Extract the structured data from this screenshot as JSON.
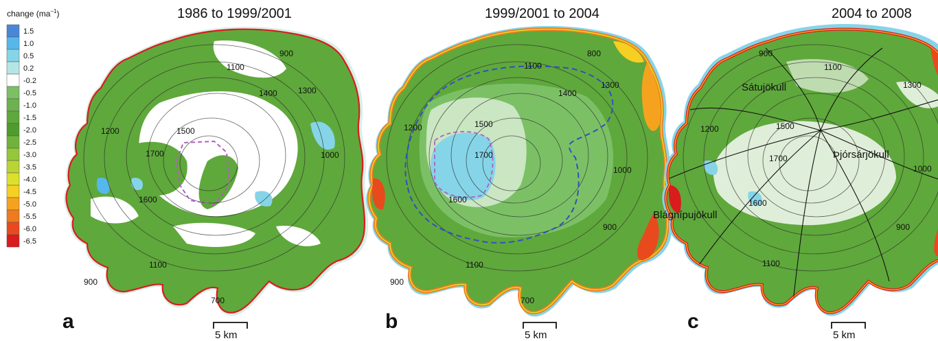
{
  "colorbar": {
    "title": "change (ma",
    "title_sup": "−1",
    "title_close": ")",
    "ticks": [
      "1.5",
      "1.0",
      "0.5",
      "0.2",
      "-0.2",
      "-0.5",
      "-1.0",
      "-1.5",
      "-2.0",
      "-2.5",
      "-3.0",
      "-3.5",
      "-4.0",
      "-4.5",
      "-5.0",
      "-5.5",
      "-6.0",
      "-6.5"
    ],
    "colors": [
      "#4a86d6",
      "#56b8ea",
      "#86d4e8",
      "#b5e6e6",
      "#ffffff",
      "#7cc066",
      "#6db24e",
      "#5fa83c",
      "#4f9c2e",
      "#6fb43a",
      "#94c73a",
      "#b9d434",
      "#dde02a",
      "#f5cf22",
      "#f5a31f",
      "#f07a1e",
      "#e84a1e",
      "#d91c1c"
    ]
  },
  "panels": [
    {
      "letter": "a",
      "period": "1986 to 1999/2001",
      "scale_label": "5 km",
      "contours": [
        "900",
        "1100",
        "1400",
        "1300",
        "1200",
        "1500",
        "1700",
        "1000",
        "1600",
        "1100",
        "900",
        "700"
      ],
      "place_names": []
    },
    {
      "letter": "b",
      "period": "1999/2001 to 2004",
      "scale_label": "5 km",
      "contours": [
        "800",
        "1100",
        "1400",
        "1300",
        "1200",
        "1500",
        "1700",
        "1000",
        "1600",
        "900",
        "1100",
        "900",
        "700"
      ],
      "place_names": []
    },
    {
      "letter": "c",
      "period": "2004 to 2008",
      "scale_label": "5 km",
      "contours": [
        "900",
        "1100",
        "1300",
        "1200",
        "1500",
        "1700",
        "1600",
        "1000",
        "900",
        "1100"
      ],
      "place_names": [
        "Sátujökull",
        "Þjórsárjökull",
        "Blágnípujökull"
      ]
    }
  ],
  "colors": {
    "main_green": "#5fa83c",
    "light_green": "#7cc066",
    "interior_blue": "#86d4e8",
    "margin_red": "#d91c1c",
    "margin_orange": "#f07a1e",
    "margin_yellow": "#dde02a",
    "purple_outline": "#b060c0",
    "blue_outline": "#3050c0"
  }
}
